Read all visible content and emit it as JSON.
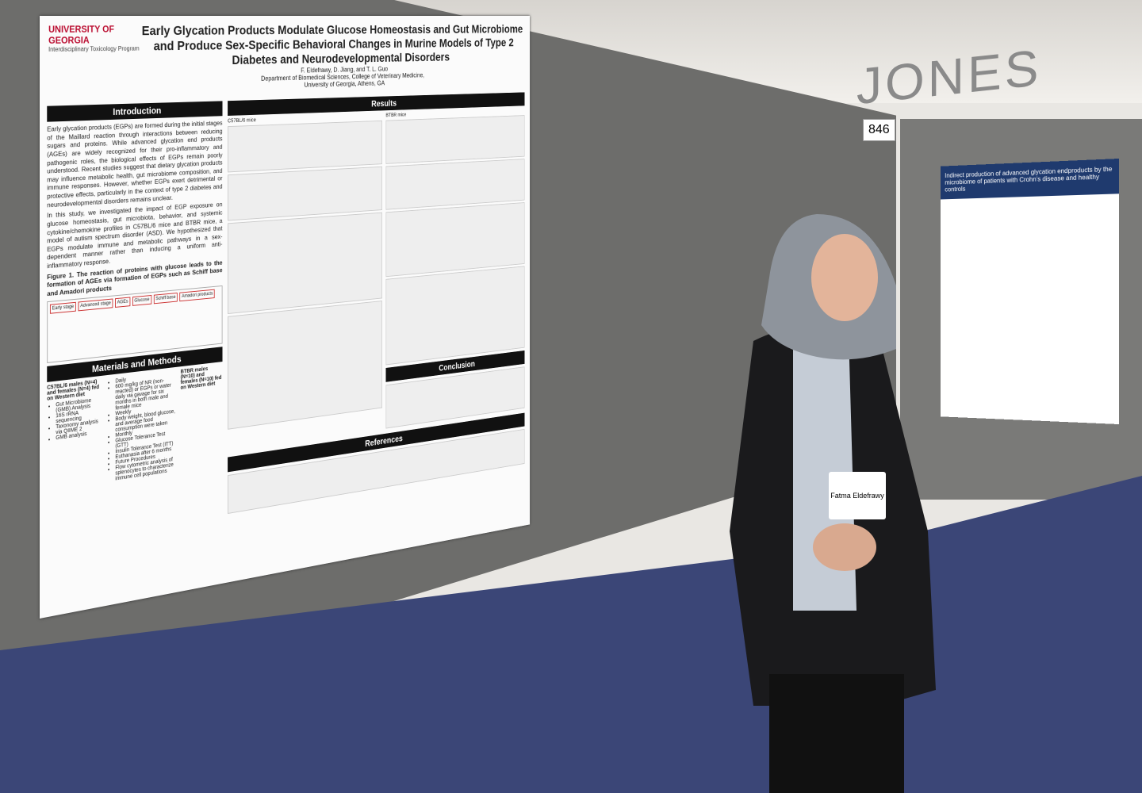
{
  "sign": "JONES",
  "booth_number": "846",
  "poster": {
    "university": "UNIVERSITY OF GEORGIA",
    "program": "Interdisciplinary Toxicology Program",
    "title": "Early Glycation Products Modulate Glucose Homeostasis and Gut Microbiome and Produce Sex-Specific Behavioral Changes in Murine Models of Type 2 Diabetes and Neurodevelopmental Disorders",
    "authors": "F. Eldefrawy, D. Jiang, and T. L. Guo",
    "affiliation": [
      "Department of Biomedical Sciences, College of Veterinary Medicine,",
      "University of Georgia, Athens, GA"
    ],
    "introduction": {
      "heading": "Introduction",
      "paragraphs": [
        "Early glycation products (EGPs) are formed during the initial stages of the Maillard reaction through interactions between reducing sugars and proteins. While advanced glycation end products (AGEs) are widely recognized for their pro-inflammatory and pathogenic roles, the biological effects of EGPs remain poorly understood. Recent studies suggest that dietary glycation products may influence metabolic health, gut microbiome composition, and immune responses. However, whether EGPs exert detrimental or protective effects, particularly in the context of type 2 diabetes and neurodevelopmental disorders remains unclear.",
        "In this study, we investigated the impact of EGP exposure on glucose homeostasis, gut microbiota, behavior, and systemic cytokine/chemokine profiles in C57BL/6 mice and BTBR mice, a model of autism spectrum disorder (ASD). We hypothesized that EGPs modulate immune and metabolic pathways in a sex-dependent manner rather than inducing a uniform anti-inflammatory response."
      ],
      "figure_caption": "Figure 1. The reaction of proteins with glucose leads to the formation of AGEs via formation of EGPs such as Schiff base and Amadori products",
      "figure_labels": [
        "Early stage",
        "Advanced stage",
        "AGEs",
        "Glucose",
        "Schiff base",
        "Amadori products"
      ]
    },
    "methods": {
      "heading": "Materials and Methods",
      "groups": [
        "C57BL/6 males (N=4) and females (N=4) fed on Western diet",
        "BTBR males (N=10) and females (N=10) fed on Western diet"
      ],
      "items": [
        "Daily",
        "600 mg/kg of NR (non-reacted) or EGPs or water daily via gavage for six months in both male and female mice",
        "Weekly",
        "Body weight, blood glucose, and average food consumption were taken",
        "Monthly",
        "Glucose Tolerance Test (GTT)",
        "Insulin Tolerance Test (ITT)",
        "Euthanasia after 6 months",
        "Future Procedures",
        "Flow cytometric analysis of splenocytes to characterize immune cell populations"
      ],
      "outcomes": [
        "Gut Microbiome (GMB) Analysis",
        "16S rRNA sequencing",
        "Taxonomy analysis via QIIME 2",
        "GMB analysis"
      ]
    },
    "results": {
      "heading": "Results",
      "strain_labels": [
        "C57BL/6 mice",
        "BTBR mice"
      ]
    },
    "conclusion": {
      "heading": "Conclusion"
    },
    "references": {
      "heading": "References"
    }
  },
  "badge_name": "Fatma Eldefrawy",
  "neighbor_poster_title": "Indirect production of advanced glycation endproducts by the microbiome of patients with Crohn's disease and healthy controls"
}
